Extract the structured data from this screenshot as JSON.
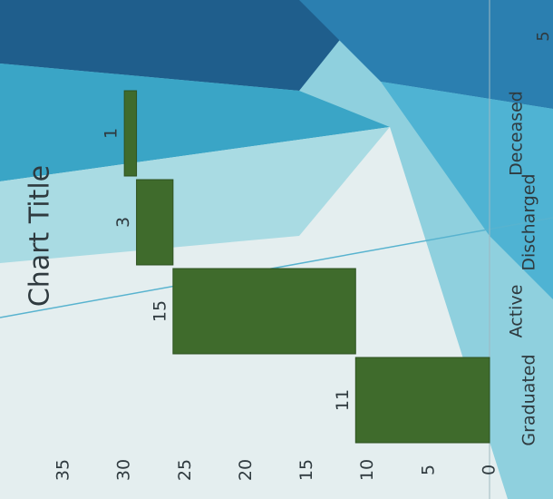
{
  "chart_data": {
    "type": "waterfall",
    "title": "Chart Title",
    "categories": [
      "Graduated",
      "Active",
      "Discharged",
      "Deceased"
    ],
    "values": [
      11,
      15,
      3,
      1
    ],
    "color": "#3f6b2c",
    "ylim": [
      0,
      35
    ],
    "yticks": [
      0,
      5,
      10,
      15,
      20,
      25,
      30,
      35
    ],
    "grid": false,
    "annotations": [
      "5"
    ]
  }
}
